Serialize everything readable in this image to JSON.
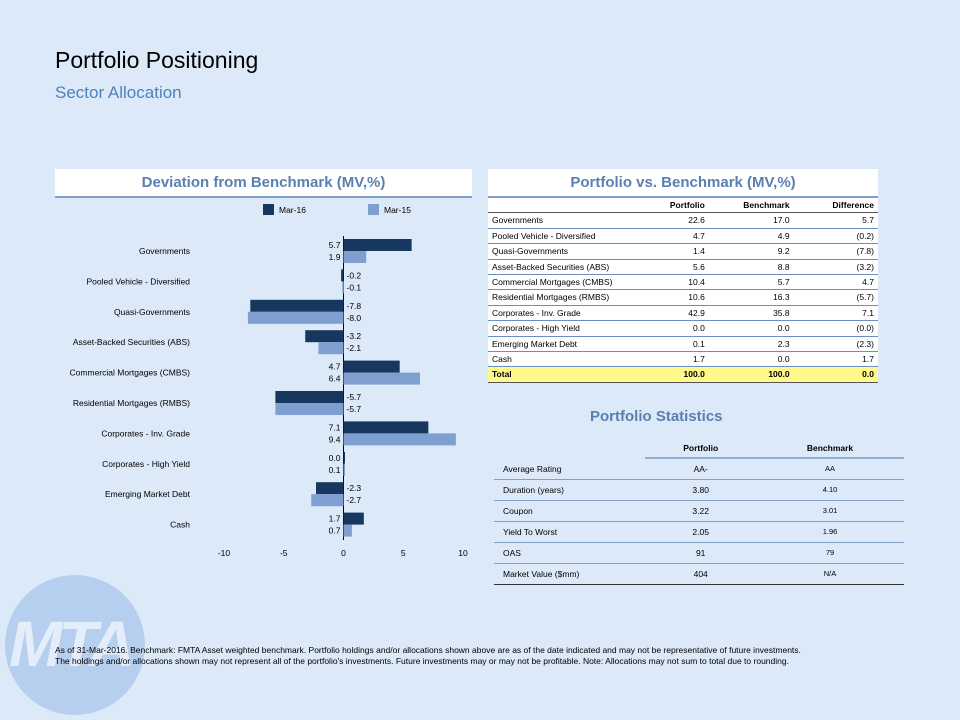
{
  "header": {
    "title": "Portfolio Positioning",
    "subtitle": "Sector Allocation"
  },
  "deviation_panel": {
    "title": "Deviation from Benchmark (MV,%)"
  },
  "chart_data": {
    "type": "bar",
    "orientation": "horizontal",
    "categories": [
      "Governments",
      "Pooled Vehicle - Diversified",
      "Quasi-Governments",
      "Asset-Backed Securities (ABS)",
      "Commercial Mortgages (CMBS)",
      "Residential Mortgages (RMBS)",
      "Corporates - Inv. Grade",
      "Corporates - High Yield",
      "Emerging Market Debt",
      "Cash"
    ],
    "series": [
      {
        "name": "Mar-16",
        "color": "#17375e",
        "values": [
          5.7,
          -0.2,
          -7.8,
          -3.2,
          4.7,
          -5.7,
          7.1,
          0.0,
          -2.3,
          1.7
        ],
        "labels": [
          "5.7",
          "-0.2",
          "-7.8",
          "-3.2",
          "4.7",
          "-5.7",
          "7.1",
          "0.0",
          "-2.3",
          "1.7"
        ]
      },
      {
        "name": "Mar-15",
        "color": "#7e9fd0",
        "values": [
          1.9,
          -0.1,
          -8.0,
          -2.1,
          6.4,
          -5.7,
          9.4,
          0.1,
          -2.7,
          0.7
        ],
        "labels": [
          "1.9",
          "-0.1",
          "-8.0",
          "-2.1",
          "6.4",
          "-5.7",
          "9.4",
          "0.1",
          "-2.7",
          "0.7"
        ]
      }
    ],
    "xlim": [
      -10,
      10
    ],
    "xticks": [
      "-10",
      "-5",
      "0",
      "5",
      "10"
    ],
    "legend_position": "top"
  },
  "comparison_panel": {
    "title": "Portfolio vs. Benchmark (MV,%)",
    "columns": [
      "",
      "Portfolio",
      "Benchmark",
      "Difference"
    ],
    "rows": [
      [
        "Governments",
        "22.6",
        "17.0",
        "5.7"
      ],
      [
        "Pooled Vehicle - Diversified",
        "4.7",
        "4.9",
        "(0.2)"
      ],
      [
        "Quasi-Governments",
        "1.4",
        "9.2",
        "(7.8)"
      ],
      [
        "Asset-Backed Securities (ABS)",
        "5.6",
        "8.8",
        "(3.2)"
      ],
      [
        "Commercial Mortgages (CMBS)",
        "10.4",
        "5.7",
        "4.7"
      ],
      [
        "Residential Mortgages (RMBS)",
        "10.6",
        "16.3",
        "(5.7)"
      ],
      [
        "Corporates - Inv. Grade",
        "42.9",
        "35.8",
        "7.1"
      ],
      [
        "Corporates - High Yield",
        "0.0",
        "0.0",
        "(0.0)"
      ],
      [
        "Emerging Market Debt",
        "0.1",
        "2.3",
        "(2.3)"
      ],
      [
        "Cash",
        "1.7",
        "0.0",
        "1.7"
      ]
    ],
    "total": [
      "Total",
      "100.0",
      "100.0",
      "0.0"
    ]
  },
  "stats_panel": {
    "title": "Portfolio Statistics",
    "columns": [
      "",
      "Portfolio",
      "Benchmark"
    ],
    "rows": [
      [
        "Average Rating",
        "AA-",
        "AA"
      ],
      [
        "Duration (years)",
        "3.80",
        "4.10"
      ],
      [
        "Coupon",
        "3.22",
        "3.01"
      ],
      [
        "Yield To Worst",
        "2.05",
        "1.96"
      ],
      [
        "OAS",
        "91",
        "79"
      ],
      [
        "Market Value ($mm)",
        "404",
        "N/A"
      ]
    ]
  },
  "logo": {
    "text": "MTA"
  },
  "footnote": {
    "line1": "As of 31-Mar-2016.  Benchmark:  FMTA Asset weighted benchmark.  Portfolio holdings  and/or allocations  shown above are as of the date indicated and may not be representative of future investments.",
    "line2": "The holdings  and/or allocations  shown may not represent  all of the portfolio's investments.  Future investments may or may not be profitable. Note: Allocations  may not sum to total due to rounding."
  }
}
